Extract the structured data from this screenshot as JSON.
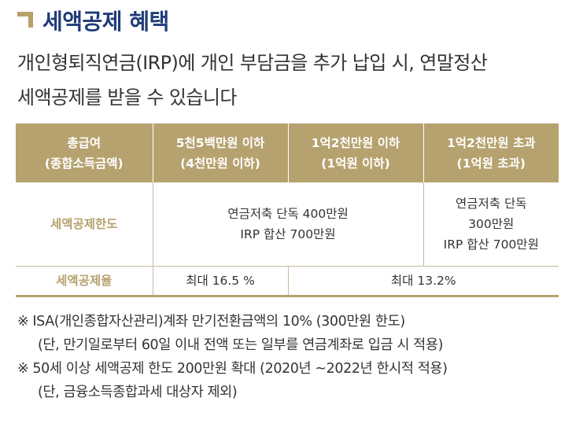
{
  "header": {
    "title": "세액공제 혜택",
    "intro_line1": "개인형퇴직연금(IRP)에 개인 부담금을 추가 납입 시, 연말정산",
    "intro_line2": "세액공제를 받을 수 있습니다"
  },
  "table": {
    "columns": [
      {
        "line1": "총급여",
        "line2": "(종합소득금액)"
      },
      {
        "line1": "5천5백만원 이하",
        "line2": "(4천만원 이하)"
      },
      {
        "line1": "1억2천만원 이하",
        "line2": "(1억원 이하)"
      },
      {
        "line1": "1억2천만원 초과",
        "line2": "(1억원 초과)"
      }
    ],
    "limit_row": {
      "label": "세액공제한도",
      "merged_line1": "연금저축 단독 400만원",
      "merged_line2": "IRP 합산 700만원",
      "last_line1": "연금저축 단독",
      "last_line2": "300만원",
      "last_line3": "IRP 합산 700만원"
    },
    "rate_row": {
      "label": "세액공제율",
      "rate_low": "최대 16.5 %",
      "rate_high": "최대 13.2%"
    }
  },
  "notes": [
    "※ ISA(개인종합자산관리)계좌 만기전환금액의 10% (300만원 한도)",
    "(단, 만기일로부터 60일 이내 전액 또는 일부를 연금계좌로 입금 시 적용)",
    "※ 50세 이상 세액공제 한도 200만원 확대 (2020년 ~2022년 한시적 적용)",
    "(단, 금융소득종합과세 대상자 제외)"
  ],
  "colors": {
    "title": "#1f3b78",
    "accent_gold": "#b6a26f",
    "text": "#333333"
  }
}
